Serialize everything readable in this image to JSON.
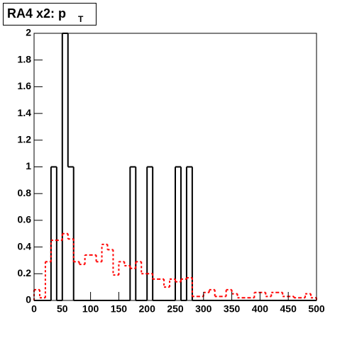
{
  "chart_data": {
    "type": "histogram",
    "title": "RA4 x2: p",
    "title_subscript": "T",
    "bins": [
      0,
      10,
      20,
      30,
      40,
      50,
      60,
      70,
      80,
      90,
      100,
      110,
      120,
      130,
      140,
      150,
      160,
      170,
      180,
      190,
      200,
      210,
      220,
      230,
      240,
      250,
      260,
      270,
      280,
      290,
      300,
      310,
      320,
      330,
      340,
      350,
      360,
      370,
      380,
      390,
      400,
      410,
      420,
      430,
      440,
      450,
      460,
      470,
      480,
      490,
      500
    ],
    "series": [
      {
        "color": "#000000",
        "line_style": "solid",
        "values": [
          0,
          0,
          0,
          1,
          0,
          2,
          1,
          0,
          0,
          0,
          0,
          0,
          0,
          0,
          0,
          0,
          0,
          1,
          0,
          0,
          1,
          0,
          0,
          0,
          0,
          1,
          0,
          1,
          0,
          0,
          0,
          0,
          0,
          0,
          0,
          0,
          0,
          0,
          0,
          0,
          0,
          0,
          0,
          0,
          0,
          0,
          0,
          0,
          0,
          0
        ]
      },
      {
        "color": "#ff0000",
        "line_style": "dashed",
        "values": [
          0.08,
          0.02,
          0.29,
          0.45,
          0.45,
          0.5,
          0.46,
          0.29,
          0.27,
          0.34,
          0.34,
          0.29,
          0.42,
          0.38,
          0.19,
          0.29,
          0.26,
          0.24,
          0.29,
          0.2,
          0.2,
          0.16,
          0.16,
          0.1,
          0.16,
          0.14,
          0.16,
          0.17,
          0.03,
          0.03,
          0.06,
          0.08,
          0.03,
          0.03,
          0.08,
          0.05,
          0.02,
          0.02,
          0.02,
          0.06,
          0.06,
          0.03,
          0.06,
          0.06,
          0.03,
          0.03,
          0.02,
          0.02,
          0.05,
          0.02
        ]
      }
    ],
    "xlim": [
      0,
      500
    ],
    "ylim": [
      0,
      2
    ],
    "xticks": [
      0,
      50,
      100,
      150,
      200,
      250,
      300,
      350,
      400,
      450,
      500
    ],
    "yticks": [
      0,
      0.2,
      0.4,
      0.6,
      0.8,
      1,
      1.2,
      1.4,
      1.6,
      1.8,
      2
    ]
  }
}
